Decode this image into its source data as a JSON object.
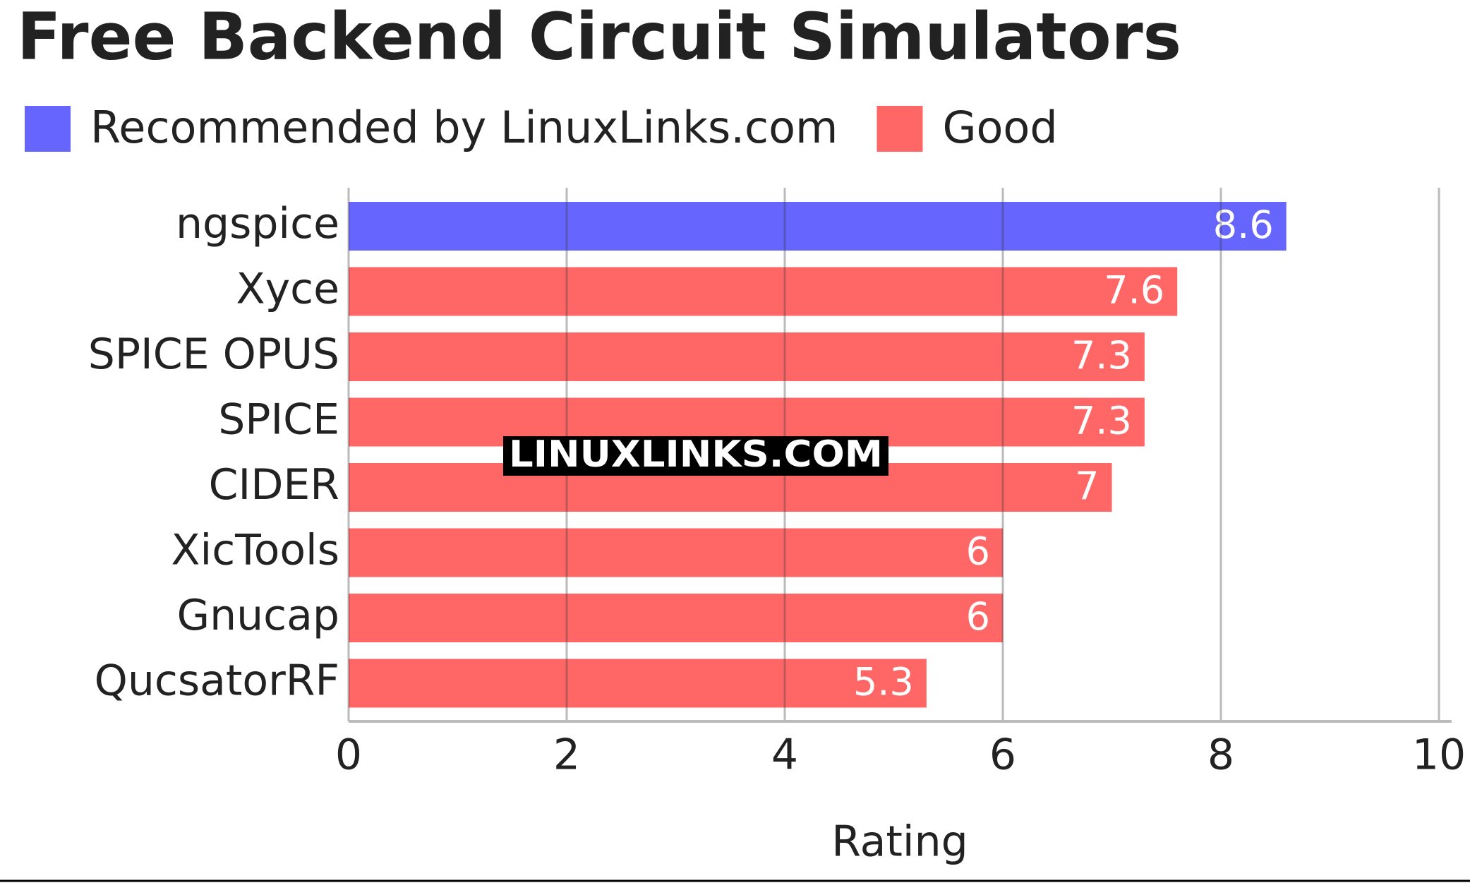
{
  "chart_data": {
    "type": "bar",
    "orientation": "horizontal",
    "title": "Free Backend Circuit Simulators",
    "watermark": "LINUXLINKS.COM",
    "categories": [
      "ngspice",
      "Xyce",
      "SPICE OPUS",
      "SPICE",
      "CIDER",
      "XicTools",
      "Gnucap",
      "QucsatorRF"
    ],
    "series": [
      {
        "name": "Recommended by LinuxLinks.com",
        "color": "#6666ff",
        "values": [
          8.6,
          null,
          null,
          null,
          null,
          null,
          null,
          null
        ]
      },
      {
        "name": "Good",
        "color": "#ff6666",
        "values": [
          null,
          7.6,
          7.3,
          7.3,
          7,
          6,
          6,
          5.3
        ]
      }
    ],
    "x_label": "Rating",
    "xlim": [
      0,
      10
    ],
    "xticks": [
      0,
      2,
      4,
      6,
      8,
      10
    ],
    "grid": true
  }
}
